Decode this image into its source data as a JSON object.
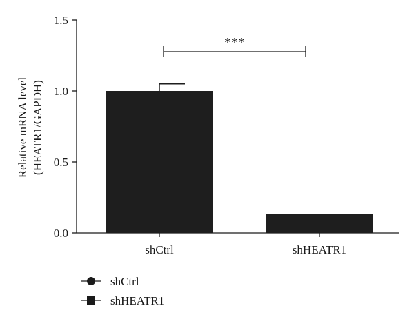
{
  "chart_data": {
    "type": "bar",
    "categories": [
      "shCtrl",
      "shHEATR1"
    ],
    "values": [
      1.0,
      0.135
    ],
    "errors": [
      0.05,
      0.0
    ],
    "ylabel_lines": [
      "Relative mRNA level",
      "(HEATR1/GAPDH)"
    ],
    "ylim": [
      0,
      1.5
    ],
    "yticks": [
      "0.0",
      "0.5",
      "1.0",
      "1.5"
    ],
    "grid": false,
    "significance": {
      "between": [
        "shCtrl",
        "shHEATR1"
      ],
      "label": "***"
    },
    "legend": {
      "placement": "bottom-left",
      "entries": [
        {
          "label": "shCtrl",
          "marker": "circle"
        },
        {
          "label": "shHEATR1",
          "marker": "square"
        }
      ]
    },
    "colors": {
      "bar": "#1e1e1e",
      "axis": "#1a1a1a"
    }
  }
}
